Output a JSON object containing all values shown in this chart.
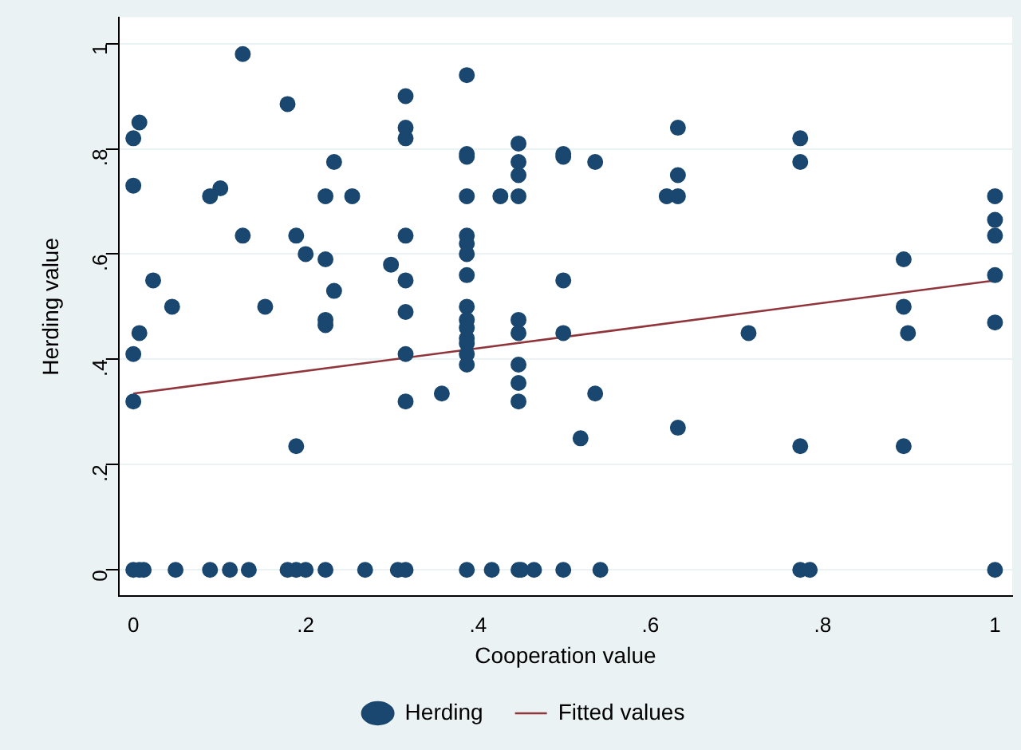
{
  "chart_data": {
    "type": "scatter",
    "xlabel": "Cooperation value",
    "ylabel": "Herding value",
    "xlim": [
      -0.017,
      1.02
    ],
    "ylim": [
      -0.05,
      1.05
    ],
    "xticks": [
      {
        "value": 0,
        "label": "0"
      },
      {
        "value": 0.2,
        "label": ".2"
      },
      {
        "value": 0.4,
        "label": ".4"
      },
      {
        "value": 0.6,
        "label": ".6"
      },
      {
        "value": 0.8,
        "label": ".8"
      },
      {
        "value": 1,
        "label": "1"
      }
    ],
    "yticks": [
      {
        "value": 0,
        "label": "0"
      },
      {
        "value": 0.2,
        "label": ".2"
      },
      {
        "value": 0.4,
        "label": ".4"
      },
      {
        "value": 0.6,
        "label": ".6"
      },
      {
        "value": 0.8,
        "label": ".8"
      },
      {
        "value": 1,
        "label": "1"
      }
    ],
    "grid": "y",
    "legend": "bottom",
    "series": [
      {
        "name": "Herding",
        "marker": "circle",
        "color": "#1a476f",
        "x": [
          0,
          0.007,
          0.012,
          0.049,
          0.089,
          0.112,
          0.134,
          0.179,
          0.189,
          0.2,
          0.223,
          0.269,
          0.307,
          0.316,
          0.387,
          0.416,
          0.447,
          0.45,
          0.465,
          0.499,
          0.542,
          0.774,
          0.785,
          1,
          0,
          0.007,
          0,
          0.023,
          0.045,
          0.007,
          0,
          0,
          0.127,
          0.089,
          0.101,
          0.127,
          0.153,
          0.179,
          0.189,
          0.2,
          0.189,
          0.233,
          0.223,
          0.254,
          0.223,
          0.233,
          0.223,
          0.223,
          0.299,
          0.316,
          0.316,
          0.316,
          0.316,
          0.316,
          0.316,
          0.316,
          0.316,
          0.387,
          0.387,
          0.387,
          0.387,
          0.387,
          0.387,
          0.387,
          0.387,
          0.387,
          0.387,
          0.387,
          0.387,
          0.387,
          0.387,
          0.387,
          0.358,
          0.426,
          0.447,
          0.447,
          0.447,
          0.447,
          0.447,
          0.447,
          0.447,
          0.447,
          0.447,
          0.499,
          0.499,
          0.499,
          0.499,
          0.536,
          0.536,
          0.519,
          0.632,
          0.632,
          0.619,
          0.632,
          0.632,
          0.714,
          0.774,
          0.774,
          0.774,
          0.894,
          0.894,
          0.899,
          0.894,
          1,
          1,
          1,
          1,
          1
        ],
        "values": [
          0,
          0,
          0,
          0,
          0,
          0,
          0,
          0,
          0,
          0,
          0,
          0,
          0,
          0,
          0,
          0,
          0,
          0,
          0,
          0,
          0,
          0,
          0,
          0,
          0.82,
          0.85,
          0.73,
          0.55,
          0.5,
          0.45,
          0.41,
          0.32,
          0.98,
          0.71,
          0.725,
          0.635,
          0.5,
          0.885,
          0.635,
          0.6,
          0.235,
          0.775,
          0.71,
          0.71,
          0.59,
          0.53,
          0.475,
          0.465,
          0.58,
          0.9,
          0.84,
          0.82,
          0.635,
          0.55,
          0.49,
          0.41,
          0.32,
          0.94,
          0.79,
          0.785,
          0.71,
          0.635,
          0.62,
          0.6,
          0.56,
          0.5,
          0.475,
          0.46,
          0.44,
          0.43,
          0.41,
          0.39,
          0.335,
          0.71,
          0.81,
          0.775,
          0.75,
          0.71,
          0.475,
          0.45,
          0.39,
          0.355,
          0.32,
          0.79,
          0.785,
          0.55,
          0.45,
          0.775,
          0.335,
          0.25,
          0.84,
          0.75,
          0.71,
          0.71,
          0.27,
          0.45,
          0.82,
          0.775,
          0.235,
          0.59,
          0.5,
          0.45,
          0.235,
          0.71,
          0.665,
          0.635,
          0.56,
          0.47
        ]
      },
      {
        "name": "Fitted values",
        "type": "line",
        "color": "#90353b",
        "x": [
          0,
          1
        ],
        "values": [
          0.335,
          0.55
        ]
      }
    ]
  }
}
